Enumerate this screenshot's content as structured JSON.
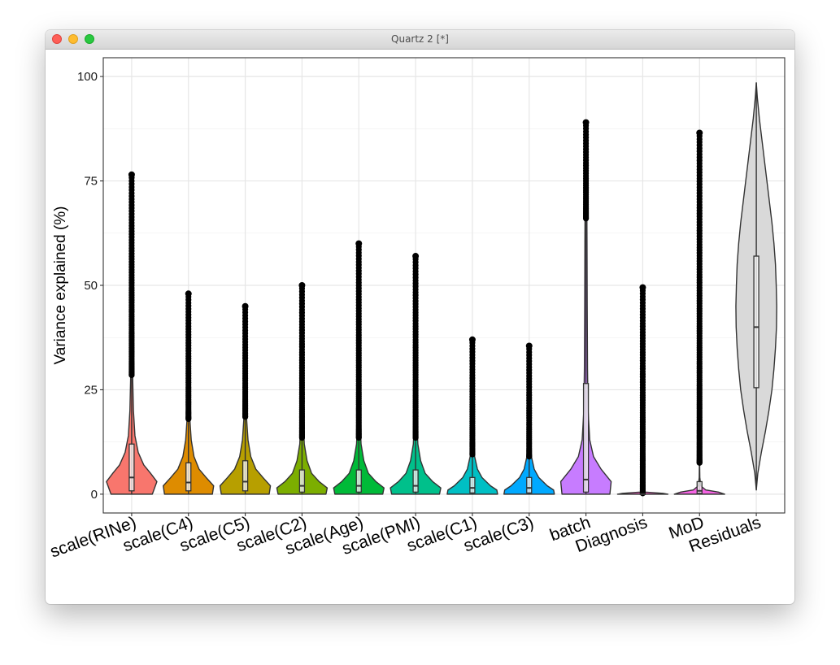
{
  "window": {
    "title": "Quartz 2 [*]"
  },
  "chart_data": {
    "type": "violin",
    "ylabel": "Variance explained (%)",
    "xlabel": "",
    "ylim": [
      -4.5,
      104.5
    ],
    "yticks": [
      0,
      25,
      50,
      75,
      100
    ],
    "ytick_labels": [
      "0",
      "25",
      "50",
      "75",
      "100"
    ],
    "grid": true,
    "legend": "none",
    "categories": [
      "scale(RINe)",
      "scale(C4)",
      "scale(C5)",
      "scale(C2)",
      "scale(Age)",
      "scale(PMI)",
      "scale(C1)",
      "scale(C3)",
      "batch",
      "Diagnosis",
      "MoD",
      "Residuals"
    ],
    "series": [
      {
        "category": "scale(RINe)",
        "color": "#f8766d",
        "min": 0,
        "q1": 0.8,
        "median": 4.0,
        "q3": 12.0,
        "whisker_high": 28.5,
        "max": 76.5,
        "density": [
          [
            0,
            0.82
          ],
          [
            3,
            1.0
          ],
          [
            5,
            0.75
          ],
          [
            7,
            0.48
          ],
          [
            10,
            0.26
          ],
          [
            14,
            0.13
          ],
          [
            20,
            0.07
          ],
          [
            28,
            0.04
          ],
          [
            40,
            0.02
          ],
          [
            55,
            0.012
          ],
          [
            70,
            0.006
          ],
          [
            76.5,
            0.003
          ]
        ]
      },
      {
        "category": "scale(C4)",
        "color": "#de8c00",
        "min": 0,
        "q1": 0.8,
        "median": 2.8,
        "q3": 7.5,
        "whisker_high": 18.0,
        "max": 48.0,
        "density": [
          [
            0,
            0.95
          ],
          [
            2,
            1.0
          ],
          [
            4,
            0.7
          ],
          [
            6,
            0.42
          ],
          [
            9,
            0.22
          ],
          [
            13,
            0.11
          ],
          [
            18,
            0.055
          ],
          [
            25,
            0.03
          ],
          [
            35,
            0.015
          ],
          [
            48,
            0.004
          ]
        ]
      },
      {
        "category": "scale(C5)",
        "color": "#b79f00",
        "min": 0,
        "q1": 0.8,
        "median": 3.0,
        "q3": 8.0,
        "whisker_high": 18.5,
        "max": 45.0,
        "density": [
          [
            0,
            0.95
          ],
          [
            2,
            1.0
          ],
          [
            4,
            0.7
          ],
          [
            6,
            0.42
          ],
          [
            9,
            0.22
          ],
          [
            13,
            0.11
          ],
          [
            18,
            0.055
          ],
          [
            25,
            0.03
          ],
          [
            35,
            0.015
          ],
          [
            45,
            0.004
          ]
        ]
      },
      {
        "category": "scale(C2)",
        "color": "#7cae00",
        "min": 0,
        "q1": 0.5,
        "median": 2.0,
        "q3": 5.8,
        "whisker_high": 13.5,
        "max": 50.0,
        "density": [
          [
            0,
            0.95
          ],
          [
            1.5,
            1.0
          ],
          [
            3,
            0.68
          ],
          [
            5,
            0.38
          ],
          [
            8,
            0.2
          ],
          [
            12,
            0.09
          ],
          [
            18,
            0.045
          ],
          [
            28,
            0.022
          ],
          [
            40,
            0.01
          ],
          [
            50,
            0.003
          ]
        ]
      },
      {
        "category": "scale(Age)",
        "color": "#00ba38",
        "min": 0,
        "q1": 0.5,
        "median": 2.0,
        "q3": 5.8,
        "whisker_high": 13.5,
        "max": 60.0,
        "density": [
          [
            0,
            0.95
          ],
          [
            1.5,
            1.0
          ],
          [
            3,
            0.68
          ],
          [
            5,
            0.38
          ],
          [
            8,
            0.2
          ],
          [
            12,
            0.09
          ],
          [
            18,
            0.045
          ],
          [
            28,
            0.022
          ],
          [
            45,
            0.01
          ],
          [
            60,
            0.003
          ]
        ]
      },
      {
        "category": "scale(PMI)",
        "color": "#00c08b",
        "min": 0,
        "q1": 0.5,
        "median": 2.0,
        "q3": 5.8,
        "whisker_high": 13.5,
        "max": 57.0,
        "density": [
          [
            0,
            0.95
          ],
          [
            1.5,
            1.0
          ],
          [
            3,
            0.68
          ],
          [
            5,
            0.38
          ],
          [
            8,
            0.2
          ],
          [
            12,
            0.09
          ],
          [
            18,
            0.045
          ],
          [
            28,
            0.022
          ],
          [
            45,
            0.01
          ],
          [
            57,
            0.003
          ]
        ]
      },
      {
        "category": "scale(C1)",
        "color": "#00bfc4",
        "min": 0,
        "q1": 0.3,
        "median": 1.5,
        "q3": 4.0,
        "whisker_high": 9.5,
        "max": 37.0,
        "density": [
          [
            0,
            1.0
          ],
          [
            1,
            0.97
          ],
          [
            2,
            0.72
          ],
          [
            4,
            0.38
          ],
          [
            6,
            0.2
          ],
          [
            9,
            0.09
          ],
          [
            14,
            0.04
          ],
          [
            22,
            0.018
          ],
          [
            30,
            0.008
          ],
          [
            37,
            0.003
          ]
        ]
      },
      {
        "category": "scale(C3)",
        "color": "#00a9ff",
        "min": 0,
        "q1": 0.3,
        "median": 1.5,
        "q3": 4.0,
        "whisker_high": 9.0,
        "max": 35.5,
        "density": [
          [
            0,
            1.0
          ],
          [
            1,
            0.97
          ],
          [
            2,
            0.72
          ],
          [
            4,
            0.38
          ],
          [
            6,
            0.2
          ],
          [
            9,
            0.09
          ],
          [
            14,
            0.04
          ],
          [
            22,
            0.018
          ],
          [
            30,
            0.008
          ],
          [
            35.5,
            0.003
          ]
        ]
      },
      {
        "category": "batch",
        "color": "#c77cff",
        "min": 0,
        "q1": 0.5,
        "median": 3.5,
        "q3": 26.5,
        "whisker_high": 66.0,
        "max": 89.0,
        "density": [
          [
            0,
            0.95
          ],
          [
            3,
            1.0
          ],
          [
            6,
            0.6
          ],
          [
            9,
            0.3
          ],
          [
            13,
            0.15
          ],
          [
            20,
            0.085
          ],
          [
            30,
            0.062
          ],
          [
            45,
            0.05
          ],
          [
            60,
            0.042
          ],
          [
            70,
            0.035
          ],
          [
            80,
            0.022
          ],
          [
            89,
            0.006
          ]
        ]
      },
      {
        "category": "Diagnosis",
        "color": "#ff61cc",
        "min": 0,
        "q1": 0,
        "median": 0,
        "q3": 0.1,
        "whisker_high": 0.2,
        "max": 49.5,
        "density": [
          [
            0,
            1.0
          ],
          [
            0.2,
            0.8
          ],
          [
            0.5,
            0.1
          ],
          [
            1,
            0.01
          ]
        ]
      },
      {
        "category": "MoD",
        "color": "#f564e3",
        "min": 0,
        "q1": 0.2,
        "median": 0.8,
        "q3": 3.0,
        "whisker_high": 7.5,
        "max": 86.5,
        "density": [
          [
            0,
            1.0
          ],
          [
            0.5,
            0.75
          ],
          [
            1,
            0.25
          ],
          [
            2,
            0.05
          ],
          [
            4,
            0.012
          ],
          [
            8,
            0.004
          ]
        ]
      },
      {
        "category": "Residuals",
        "color": "#d9d9d9",
        "min": 1,
        "q1": 25.5,
        "median": 40.0,
        "q3": 57.0,
        "whisker_high": 98.5,
        "max": 98.5,
        "density": [
          [
            1,
            0.0
          ],
          [
            5,
            0.06
          ],
          [
            10,
            0.2
          ],
          [
            15,
            0.36
          ],
          [
            20,
            0.5
          ],
          [
            25,
            0.62
          ],
          [
            30,
            0.7
          ],
          [
            35,
            0.76
          ],
          [
            40,
            0.8
          ],
          [
            45,
            0.81
          ],
          [
            50,
            0.79
          ],
          [
            55,
            0.76
          ],
          [
            60,
            0.7
          ],
          [
            65,
            0.62
          ],
          [
            70,
            0.52
          ],
          [
            75,
            0.42
          ],
          [
            80,
            0.32
          ],
          [
            85,
            0.22
          ],
          [
            90,
            0.12
          ],
          [
            95,
            0.04
          ],
          [
            98.5,
            0.0
          ]
        ]
      }
    ]
  }
}
